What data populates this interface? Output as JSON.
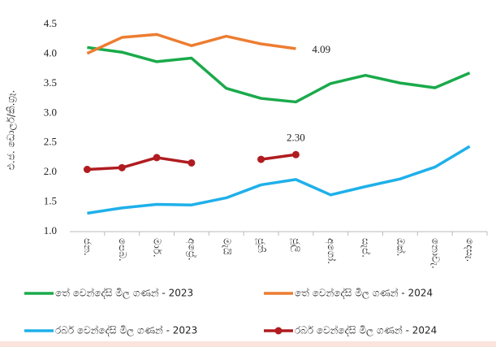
{
  "chart_data": {
    "type": "line",
    "y_label": "එ.ජ. ඩොලර්/කි.ග්‍රෑ.",
    "categories": [
      "ජන.",
      "පෙබ.",
      "මාර්.",
      "අප්‍රේ.",
      "මැයි",
      "ජූනි",
      "ජූලි",
      "අගෝ.",
      "සැප්.",
      "ඔක්.",
      "නොවැ.",
      "දෙසැ."
    ],
    "series": [
      {
        "name": "තේ වෙන්දේසි මිල ගණන් - 2023",
        "color": "#1aaa4b",
        "markers": false,
        "values": [
          4.11,
          4.03,
          3.87,
          3.93,
          3.42,
          3.25,
          3.19,
          3.5,
          3.64,
          3.51,
          3.43,
          3.68
        ]
      },
      {
        "name": "තේ වෙන්දේසි මිල ගණන් - 2024",
        "color": "#ed7d31",
        "markers": false,
        "values": [
          4.01,
          4.28,
          4.33,
          4.14,
          4.3,
          4.17,
          4.09,
          null,
          null,
          null,
          null,
          null
        ],
        "value_labels": [
          null,
          null,
          null,
          null,
          null,
          null,
          "4.09",
          null,
          null,
          null,
          null,
          null
        ]
      },
      {
        "name": "රබර් වෙන්දේසි මිල ගණන් - 2023",
        "color": "#1fb0ea",
        "markers": false,
        "values": [
          1.31,
          1.4,
          1.46,
          1.45,
          1.57,
          1.79,
          1.88,
          1.62,
          1.76,
          1.89,
          2.09,
          2.44
        ]
      },
      {
        "name": "රබර් වෙන්දේසි මිල ගණන් - 2024",
        "color": "#b01c20",
        "markers": true,
        "values": [
          2.05,
          2.08,
          2.25,
          2.16,
          null,
          2.22,
          2.3,
          null,
          null,
          null,
          null,
          null
        ],
        "value_labels": [
          null,
          null,
          null,
          null,
          null,
          null,
          "2.30",
          null,
          null,
          null,
          null,
          null
        ]
      }
    ],
    "ylim": [
      1,
      4.5
    ],
    "yticks": [
      {
        "value": 1,
        "label": "1.0"
      },
      1.5,
      {
        "value": 2,
        "label": "2.0"
      },
      2.5,
      {
        "value": 3,
        "label": "3.0"
      },
      3.5,
      {
        "value": 4,
        "label": "4.0"
      },
      4.5
    ],
    "grid": false
  }
}
